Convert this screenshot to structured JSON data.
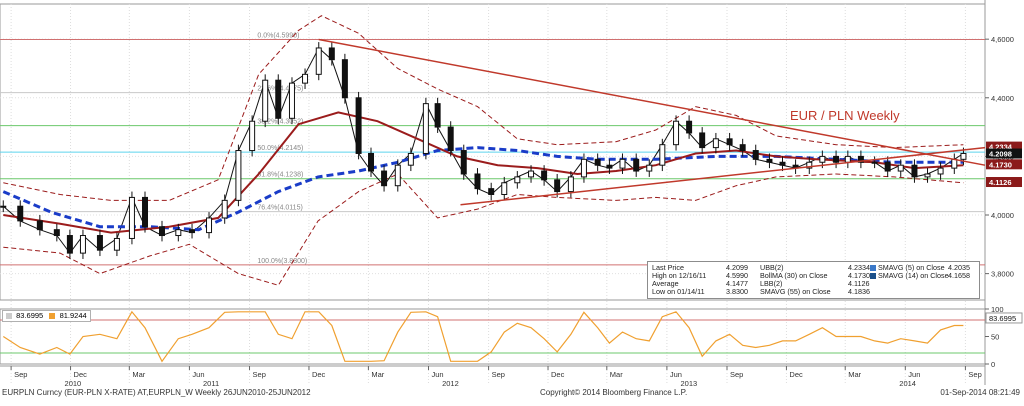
{
  "chart_data": {
    "type": "line",
    "title": "EUR / PLN Weekly",
    "footer": {
      "left": "EURPLN Curncy (EUR-PLN X-RATE) AT,EURPLN_W  Weekly 26JUN2010-25JUN2012",
      "center": "Copyright© 2014 Bloomberg Finance L.P.",
      "right": "01-Sep-2014 08:21:49"
    },
    "y_axis": {
      "ticks": [
        "4,6000",
        "4,4000",
        "4,2000",
        "4,0000",
        "3,8000"
      ],
      "tick_values": [
        4.6,
        4.4,
        4.2,
        4.0,
        3.8
      ],
      "ylim": [
        3.71,
        4.72
      ]
    },
    "x_axis": {
      "range": [
        "2010-08-15",
        "2014-10-01"
      ],
      "months": [
        {
          "label": "Sep",
          "date": "2010-09-01"
        },
        {
          "label": "Dec",
          "date": "2010-12-01"
        },
        {
          "label": "Mar",
          "date": "2011-03-01"
        },
        {
          "label": "Jun",
          "date": "2011-06-01"
        },
        {
          "label": "Sep",
          "date": "2011-09-01"
        },
        {
          "label": "Dec",
          "date": "2011-12-01"
        },
        {
          "label": "Mar",
          "date": "2012-03-01"
        },
        {
          "label": "Jun",
          "date": "2012-06-01"
        },
        {
          "label": "Sep",
          "date": "2012-09-01"
        },
        {
          "label": "Dec",
          "date": "2012-12-01"
        },
        {
          "label": "Mar",
          "date": "2013-03-01"
        },
        {
          "label": "Jun",
          "date": "2013-06-01"
        },
        {
          "label": "Sep",
          "date": "2013-09-01"
        },
        {
          "label": "Dec",
          "date": "2013-12-01"
        },
        {
          "label": "Mar",
          "date": "2014-03-01"
        },
        {
          "label": "Jun",
          "date": "2014-06-01"
        },
        {
          "label": "Sep",
          "date": "2014-09-01"
        }
      ],
      "years": [
        {
          "label": "2010",
          "date": "2010-12-01"
        },
        {
          "label": "2011",
          "date": "2011-07-01"
        },
        {
          "label": "2012",
          "date": "2012-07-01"
        },
        {
          "label": "2013",
          "date": "2013-07-01"
        },
        {
          "label": "2014",
          "date": "2014-06-01"
        }
      ]
    },
    "fib_levels": [
      {
        "label": "0.0%(4.5990)",
        "value": 4.599,
        "color": "#d07070"
      },
      {
        "label": "23.6%(4.4175)",
        "value": 4.4175,
        "color": "#c8c8c8"
      },
      {
        "label": "38.2%(4.3052)",
        "value": 4.3052,
        "color": "#6cc86c"
      },
      {
        "label": "50.0%(4.2145)",
        "value": 4.2145,
        "color": "#5ed4ee"
      },
      {
        "label": "61.8%(4.1238)",
        "value": 4.1238,
        "color": "#6cc86c"
      },
      {
        "label": "76.4%(4.0115)",
        "value": 4.0115,
        "color": "#c8c8c8"
      },
      {
        "label": "100.0%(3.8300)",
        "value": 3.83,
        "color": "#d07070"
      }
    ],
    "price_labels": [
      {
        "text": "4.2334",
        "value": 4.2334,
        "bg": "#8b1a1a"
      },
      {
        "text": "4.2098",
        "value": 4.2098,
        "bg": "#111111"
      },
      {
        "text": "4.1730",
        "value": 4.173,
        "bg": "#8b1a1a"
      },
      {
        "text": "4.1126",
        "value": 4.1126,
        "bg": "#8b1a1a"
      }
    ],
    "trendlines": [
      {
        "name": "upper",
        "from": {
          "date": "2011-12-16",
          "value": 4.599
        },
        "to": {
          "date": "2014-10-01",
          "value": 4.17
        }
      },
      {
        "name": "lower",
        "from": {
          "date": "2012-07-20",
          "value": 4.035
        },
        "to": {
          "date": "2014-10-01",
          "value": 4.23
        }
      }
    ],
    "series": [
      {
        "name": "Last Price",
        "color": "#111111",
        "points": [
          {
            "date": "2010-08-20",
            "value": 4.03
          },
          {
            "date": "2010-09-15",
            "value": 3.98
          },
          {
            "date": "2010-10-15",
            "value": 3.95
          },
          {
            "date": "2010-11-10",
            "value": 3.93
          },
          {
            "date": "2010-11-30",
            "value": 3.87
          },
          {
            "date": "2010-12-20",
            "value": 3.93
          },
          {
            "date": "2011-01-15",
            "value": 3.88
          },
          {
            "date": "2011-02-10",
            "value": 3.92
          },
          {
            "date": "2011-03-05",
            "value": 4.06
          },
          {
            "date": "2011-03-25",
            "value": 3.96
          },
          {
            "date": "2011-04-20",
            "value": 3.93
          },
          {
            "date": "2011-05-15",
            "value": 3.95
          },
          {
            "date": "2011-06-05",
            "value": 3.94
          },
          {
            "date": "2011-07-01",
            "value": 3.99
          },
          {
            "date": "2011-07-25",
            "value": 4.05
          },
          {
            "date": "2011-08-15",
            "value": 4.22
          },
          {
            "date": "2011-09-05",
            "value": 4.32
          },
          {
            "date": "2011-09-25",
            "value": 4.46
          },
          {
            "date": "2011-10-15",
            "value": 4.33
          },
          {
            "date": "2011-11-05",
            "value": 4.45
          },
          {
            "date": "2011-11-25",
            "value": 4.48
          },
          {
            "date": "2011-12-16",
            "value": 4.57
          },
          {
            "date": "2012-01-05",
            "value": 4.53
          },
          {
            "date": "2012-01-25",
            "value": 4.4
          },
          {
            "date": "2012-02-15",
            "value": 4.21
          },
          {
            "date": "2012-03-05",
            "value": 4.15
          },
          {
            "date": "2012-03-25",
            "value": 4.1
          },
          {
            "date": "2012-04-15",
            "value": 4.17
          },
          {
            "date": "2012-05-05",
            "value": 4.21
          },
          {
            "date": "2012-05-28",
            "value": 4.38
          },
          {
            "date": "2012-06-15",
            "value": 4.3
          },
          {
            "date": "2012-07-05",
            "value": 4.22
          },
          {
            "date": "2012-07-25",
            "value": 4.14
          },
          {
            "date": "2012-08-15",
            "value": 4.09
          },
          {
            "date": "2012-09-05",
            "value": 4.07
          },
          {
            "date": "2012-09-25",
            "value": 4.11
          },
          {
            "date": "2012-10-15",
            "value": 4.13
          },
          {
            "date": "2012-11-05",
            "value": 4.15
          },
          {
            "date": "2012-11-25",
            "value": 4.12
          },
          {
            "date": "2012-12-15",
            "value": 4.08
          },
          {
            "date": "2013-01-05",
            "value": 4.13
          },
          {
            "date": "2013-01-25",
            "value": 4.19
          },
          {
            "date": "2013-02-15",
            "value": 4.17
          },
          {
            "date": "2013-03-05",
            "value": 4.16
          },
          {
            "date": "2013-03-25",
            "value": 4.19
          },
          {
            "date": "2013-04-15",
            "value": 4.15
          },
          {
            "date": "2013-05-05",
            "value": 4.17
          },
          {
            "date": "2013-05-25",
            "value": 4.24
          },
          {
            "date": "2013-06-15",
            "value": 4.32
          },
          {
            "date": "2013-07-05",
            "value": 4.28
          },
          {
            "date": "2013-07-25",
            "value": 4.23
          },
          {
            "date": "2013-08-15",
            "value": 4.26
          },
          {
            "date": "2013-09-05",
            "value": 4.24
          },
          {
            "date": "2013-09-25",
            "value": 4.22
          },
          {
            "date": "2013-10-15",
            "value": 4.19
          },
          {
            "date": "2013-11-05",
            "value": 4.18
          },
          {
            "date": "2013-11-25",
            "value": 4.17
          },
          {
            "date": "2013-12-15",
            "value": 4.16
          },
          {
            "date": "2014-01-05",
            "value": 4.18
          },
          {
            "date": "2014-01-25",
            "value": 4.2
          },
          {
            "date": "2014-02-15",
            "value": 4.18
          },
          {
            "date": "2014-03-05",
            "value": 4.2
          },
          {
            "date": "2014-03-25",
            "value": 4.18
          },
          {
            "date": "2014-04-15",
            "value": 4.18
          },
          {
            "date": "2014-05-05",
            "value": 4.15
          },
          {
            "date": "2014-05-25",
            "value": 4.17
          },
          {
            "date": "2014-06-15",
            "value": 4.13
          },
          {
            "date": "2014-07-05",
            "value": 4.14
          },
          {
            "date": "2014-07-25",
            "value": 4.16
          },
          {
            "date": "2014-08-15",
            "value": 4.19
          },
          {
            "date": "2014-08-29",
            "value": 4.21
          }
        ]
      },
      {
        "name": "SMAVG (55) on Close",
        "color": "#1a3cc8",
        "points": [
          {
            "date": "2010-08-20",
            "value": 4.08
          },
          {
            "date": "2010-11-01",
            "value": 4.01
          },
          {
            "date": "2011-01-15",
            "value": 3.96
          },
          {
            "date": "2011-04-01",
            "value": 3.96
          },
          {
            "date": "2011-06-15",
            "value": 3.95
          },
          {
            "date": "2011-08-15",
            "value": 4.01
          },
          {
            "date": "2011-10-15",
            "value": 4.08
          },
          {
            "date": "2011-12-15",
            "value": 4.13
          },
          {
            "date": "2012-02-15",
            "value": 4.15
          },
          {
            "date": "2012-04-15",
            "value": 4.18
          },
          {
            "date": "2012-06-15",
            "value": 4.22
          },
          {
            "date": "2012-08-15",
            "value": 4.23
          },
          {
            "date": "2012-10-15",
            "value": 4.22
          },
          {
            "date": "2012-12-15",
            "value": 4.2
          },
          {
            "date": "2013-02-15",
            "value": 4.19
          },
          {
            "date": "2013-05-15",
            "value": 4.19
          },
          {
            "date": "2013-08-15",
            "value": 4.2
          },
          {
            "date": "2013-11-15",
            "value": 4.2
          },
          {
            "date": "2014-02-15",
            "value": 4.19
          },
          {
            "date": "2014-05-15",
            "value": 4.18
          },
          {
            "date": "2014-08-29",
            "value": 4.18
          }
        ]
      },
      {
        "name": "BollMA (30) on Close",
        "color": "#9b1c1c",
        "points": [
          {
            "date": "2010-08-20",
            "value": 4.0
          },
          {
            "date": "2010-11-15",
            "value": 3.97
          },
          {
            "date": "2011-02-01",
            "value": 3.94
          },
          {
            "date": "2011-05-01",
            "value": 3.96
          },
          {
            "date": "2011-07-15",
            "value": 3.99
          },
          {
            "date": "2011-09-15",
            "value": 4.14
          },
          {
            "date": "2011-11-15",
            "value": 4.31
          },
          {
            "date": "2012-01-15",
            "value": 4.35
          },
          {
            "date": "2012-03-15",
            "value": 4.32
          },
          {
            "date": "2012-05-15",
            "value": 4.26
          },
          {
            "date": "2012-07-15",
            "value": 4.2
          },
          {
            "date": "2012-09-15",
            "value": 4.17
          },
          {
            "date": "2012-11-15",
            "value": 4.16
          },
          {
            "date": "2013-01-15",
            "value": 4.14
          },
          {
            "date": "2013-03-15",
            "value": 4.15
          },
          {
            "date": "2013-05-15",
            "value": 4.17
          },
          {
            "date": "2013-07-15",
            "value": 4.21
          },
          {
            "date": "2013-09-15",
            "value": 4.22
          },
          {
            "date": "2013-11-15",
            "value": 4.2
          },
          {
            "date": "2014-01-15",
            "value": 4.19
          },
          {
            "date": "2014-04-15",
            "value": 4.18
          },
          {
            "date": "2014-06-15",
            "value": 4.16
          },
          {
            "date": "2014-08-29",
            "value": 4.17
          }
        ]
      },
      {
        "name": "UBB(2)",
        "color": "#9b1c1c",
        "dashed": true,
        "points": [
          {
            "date": "2010-08-20",
            "value": 4.11
          },
          {
            "date": "2010-11-15",
            "value": 4.07
          },
          {
            "date": "2011-02-01",
            "value": 4.05
          },
          {
            "date": "2011-05-01",
            "value": 4.05
          },
          {
            "date": "2011-07-15",
            "value": 4.12
          },
          {
            "date": "2011-09-15",
            "value": 4.48
          },
          {
            "date": "2011-11-15",
            "value": 4.63
          },
          {
            "date": "2011-12-20",
            "value": 4.68
          },
          {
            "date": "2012-02-15",
            "value": 4.62
          },
          {
            "date": "2012-04-15",
            "value": 4.5
          },
          {
            "date": "2012-06-15",
            "value": 4.43
          },
          {
            "date": "2012-08-15",
            "value": 4.37
          },
          {
            "date": "2012-10-15",
            "value": 4.26
          },
          {
            "date": "2012-12-15",
            "value": 4.24
          },
          {
            "date": "2013-03-15",
            "value": 4.25
          },
          {
            "date": "2013-05-15",
            "value": 4.29
          },
          {
            "date": "2013-07-15",
            "value": 4.37
          },
          {
            "date": "2013-09-15",
            "value": 4.34
          },
          {
            "date": "2013-11-15",
            "value": 4.27
          },
          {
            "date": "2014-02-15",
            "value": 4.24
          },
          {
            "date": "2014-05-15",
            "value": 4.23
          },
          {
            "date": "2014-08-29",
            "value": 4.24
          }
        ]
      },
      {
        "name": "LBB(2)",
        "color": "#9b1c1c",
        "dashed": true,
        "points": [
          {
            "date": "2010-08-20",
            "value": 3.89
          },
          {
            "date": "2010-11-15",
            "value": 3.87
          },
          {
            "date": "2011-01-15",
            "value": 3.8
          },
          {
            "date": "2011-04-01",
            "value": 3.86
          },
          {
            "date": "2011-06-01",
            "value": 3.9
          },
          {
            "date": "2011-08-15",
            "value": 3.8
          },
          {
            "date": "2011-10-15",
            "value": 3.76
          },
          {
            "date": "2011-12-15",
            "value": 3.98
          },
          {
            "date": "2012-02-15",
            "value": 4.08
          },
          {
            "date": "2012-04-15",
            "value": 4.14
          },
          {
            "date": "2012-06-15",
            "value": 3.99
          },
          {
            "date": "2012-08-15",
            "value": 4.02
          },
          {
            "date": "2012-10-15",
            "value": 4.07
          },
          {
            "date": "2012-12-15",
            "value": 4.06
          },
          {
            "date": "2013-03-15",
            "value": 4.05
          },
          {
            "date": "2013-05-15",
            "value": 4.06
          },
          {
            "date": "2013-07-15",
            "value": 4.05
          },
          {
            "date": "2013-09-15",
            "value": 4.1
          },
          {
            "date": "2013-11-15",
            "value": 4.13
          },
          {
            "date": "2014-02-15",
            "value": 4.14
          },
          {
            "date": "2014-05-15",
            "value": 4.13
          },
          {
            "date": "2014-08-29",
            "value": 4.11
          }
        ]
      }
    ],
    "legend": {
      "col1": [
        {
          "key": "Last Price",
          "value": "4.2099"
        },
        {
          "key": "High on 12/16/11",
          "value": "4.5990"
        },
        {
          "key": "Average",
          "value": "4.1477"
        },
        {
          "key": "Low on 01/14/11",
          "value": "3.8300"
        }
      ],
      "col2": [
        {
          "key": "UBB(2)",
          "value": "4.2334"
        },
        {
          "key": "BollMA (30) on Close",
          "value": "4.1730"
        },
        {
          "key": "LBB(2)",
          "value": "4.1126"
        },
        {
          "key": "SMAVG (55) on Close",
          "value": "4.1836"
        }
      ],
      "col3": [
        {
          "key": "SMAVG (5) on Close",
          "value": "4.2035"
        },
        {
          "key": "SMAVG (14) on Close",
          "value": "4.1658"
        }
      ]
    },
    "oscillator": {
      "values_shown": [
        {
          "text": "83.6995",
          "color": "#cccccc"
        },
        {
          "text": "81.9244",
          "color": "#f0a030"
        }
      ],
      "ticks": [
        "100",
        "50",
        "0"
      ],
      "tick_values": [
        100,
        50,
        0
      ],
      "levels": [
        80,
        20
      ],
      "current_label": "83.6995"
    }
  }
}
